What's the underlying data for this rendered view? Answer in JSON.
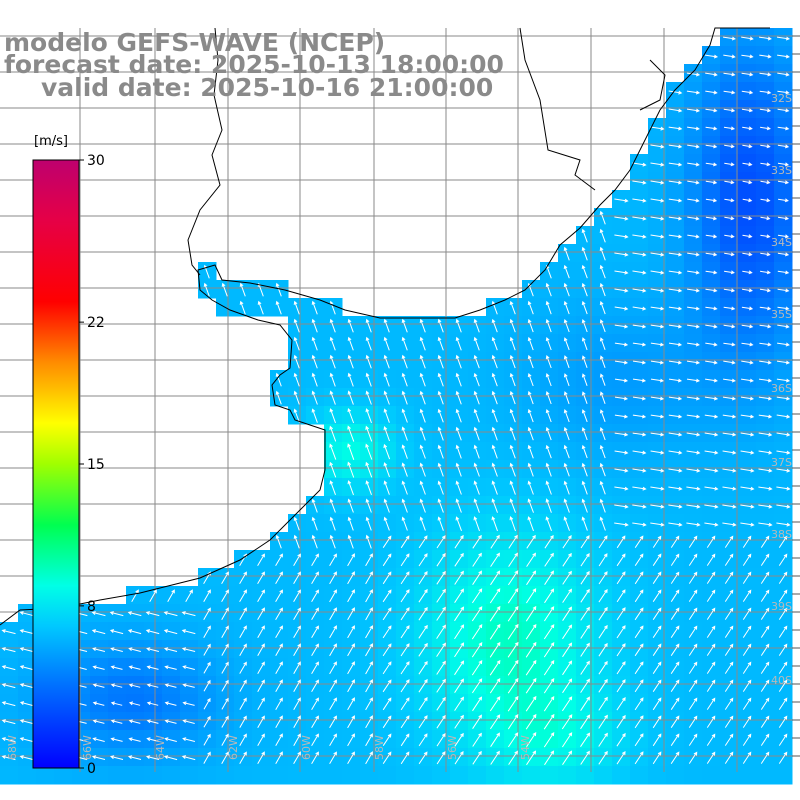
{
  "header": {
    "model": "modelo GEFS-WAVE (NCEP)",
    "forecast": "forecast date: 2025-10-13 18:00:00",
    "valid": "valid date: 2025-10-16 21:00:00"
  },
  "colorbar": {
    "unit": "[m/s]",
    "ticks": [
      "30",
      "22",
      "15",
      "8",
      "0"
    ],
    "tick_values": [
      30,
      22,
      15,
      8,
      0
    ],
    "range": [
      0,
      30
    ],
    "colors": [
      "#0000ff",
      "#0090ff",
      "#00ffff",
      "#00ff00",
      "#ffff00",
      "#ff8000",
      "#ff0000",
      "#c8005a",
      "#c80080"
    ]
  },
  "map": {
    "projection": "lat-lon",
    "lon_range": [
      -70,
      -48
    ],
    "lat_range": [
      -41,
      -30
    ],
    "land_color": "#ffffff",
    "grid_color": "#808080",
    "lat_labels": [
      "32S",
      "33S",
      "34S",
      "35S",
      "36S",
      "37S",
      "38S",
      "39S",
      "40S"
    ],
    "lon_labels": [
      "68W",
      "66W",
      "64W",
      "62W",
      "60W",
      "58W",
      "56W",
      "54W"
    ],
    "field": "10m wind speed and direction"
  }
}
